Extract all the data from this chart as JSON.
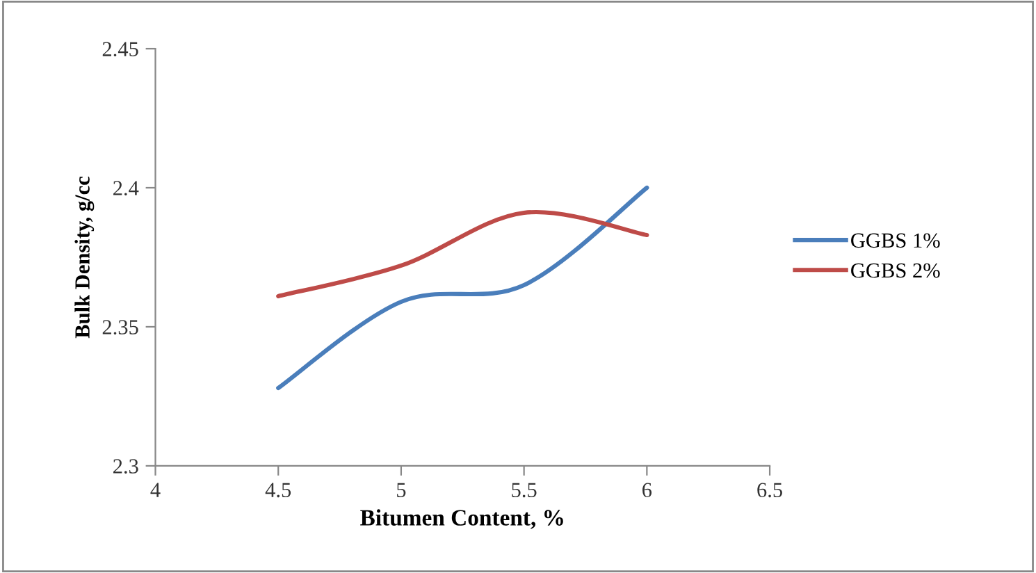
{
  "chart_data": {
    "type": "line",
    "xlabel": "Bitumen Content, %",
    "ylabel": "Bulk Density, g/cc",
    "x": [
      4.5,
      5,
      5.5,
      6
    ],
    "series": [
      {
        "name": "GGBS 1%",
        "color": "#4a7ebb",
        "values": [
          2.328,
          2.359,
          2.365,
          2.4
        ]
      },
      {
        "name": "GGBS 2%",
        "color": "#be4b48",
        "values": [
          2.361,
          2.372,
          2.391,
          2.383
        ]
      }
    ],
    "xlim": [
      4,
      6.5
    ],
    "xticks": [
      4,
      4.5,
      5,
      5.5,
      6,
      6.5
    ],
    "ylim": [
      2.3,
      2.45
    ],
    "yticks": [
      2.3,
      2.35,
      2.4,
      2.45
    ],
    "grid": false,
    "legend": "right",
    "marker": "none",
    "line_style": "solid"
  }
}
